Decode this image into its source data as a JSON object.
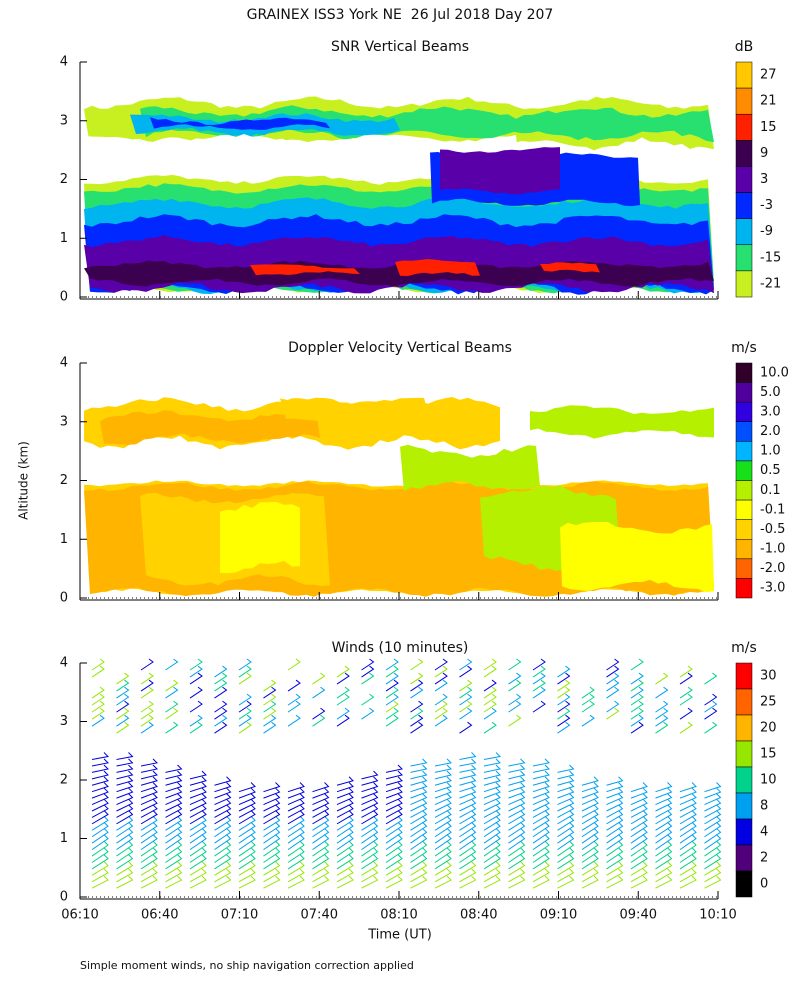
{
  "title": "GRAINEX ISS3 York NE  26 Jul 2018 Day 207",
  "footnote": "Simple moment winds, no ship navigation correction applied",
  "chart_data": [
    {
      "type": "heatmap",
      "title": "SNR Vertical Beams",
      "colorbar_label": "dB",
      "ylim": [
        0,
        4
      ],
      "yticks": [
        0,
        1,
        2,
        3,
        4
      ],
      "xlim": [
        370,
        610
      ],
      "colorbar": [
        {
          "value": 27,
          "color": "#ffc800"
        },
        {
          "value": 21,
          "color": "#ff8c00"
        },
        {
          "value": 15,
          "color": "#ff2000"
        },
        {
          "value": 9,
          "color": "#3c0050"
        },
        {
          "value": 3,
          "color": "#5a00a8"
        },
        {
          "value": -3,
          "color": "#0028ff"
        },
        {
          "value": -9,
          "color": "#00b4f0"
        },
        {
          "value": -15,
          "color": "#28e070"
        },
        {
          "value": -21,
          "color": "#c8f020"
        }
      ]
    },
    {
      "type": "heatmap",
      "title": "Doppler Velocity Vertical Beams",
      "colorbar_label": "m/s",
      "ylabel": "Altitude (km)",
      "ylim": [
        0,
        4
      ],
      "yticks": [
        0,
        1,
        2,
        3,
        4
      ],
      "xlim": [
        370,
        610
      ],
      "colorbar": [
        {
          "value": 10,
          "label": "10.0",
          "color": "#300028"
        },
        {
          "value": 5,
          "label": "5.0",
          "color": "#50009c"
        },
        {
          "value": 3,
          "label": "3.0",
          "color": "#3000e0"
        },
        {
          "value": 2,
          "label": "2.0",
          "color": "#0050ff"
        },
        {
          "value": 1,
          "label": "1.0",
          "color": "#00b4ff"
        },
        {
          "value": 0.5,
          "color": "#18e018"
        },
        {
          "value": 0.1,
          "color": "#b4f000"
        },
        {
          "value": -0.1,
          "color": "#ffff00"
        },
        {
          "value": -0.5,
          "color": "#ffd200"
        },
        {
          "value": -1,
          "label": "-1.0",
          "color": "#ffb400"
        },
        {
          "value": -2,
          "label": "-2.0",
          "color": "#ff6400"
        },
        {
          "value": -3,
          "label": "-3.0",
          "color": "#ff0000"
        }
      ]
    },
    {
      "type": "barbs",
      "title": "Winds (10 minutes)",
      "colorbar_label": "m/s",
      "xlabel": "Time (UT)",
      "ylim": [
        0,
        4
      ],
      "yticks": [
        0,
        1,
        2,
        3,
        4
      ],
      "xlim": [
        370,
        610
      ],
      "xticks": [
        {
          "value": 370,
          "label": "06:10"
        },
        {
          "value": 400,
          "label": "06:40"
        },
        {
          "value": 430,
          "label": "07:10"
        },
        {
          "value": 460,
          "label": "07:40"
        },
        {
          "value": 490,
          "label": "08:10"
        },
        {
          "value": 520,
          "label": "08:40"
        },
        {
          "value": 550,
          "label": "09:10"
        },
        {
          "value": 580,
          "label": "09:40"
        },
        {
          "value": 610,
          "label": "10:10"
        }
      ],
      "colorbar": [
        {
          "value": 30,
          "color": "#ff0000"
        },
        {
          "value": 25,
          "color": "#ff6400"
        },
        {
          "value": 20,
          "color": "#ffb400"
        },
        {
          "value": 15,
          "color": "#96e600"
        },
        {
          "value": 10,
          "color": "#00d28c"
        },
        {
          "value": 8,
          "color": "#00a0f0"
        },
        {
          "value": 4,
          "color": "#0000e0"
        },
        {
          "value": 2,
          "color": "#500078"
        },
        {
          "value": 0,
          "color": "#000000"
        }
      ]
    }
  ]
}
